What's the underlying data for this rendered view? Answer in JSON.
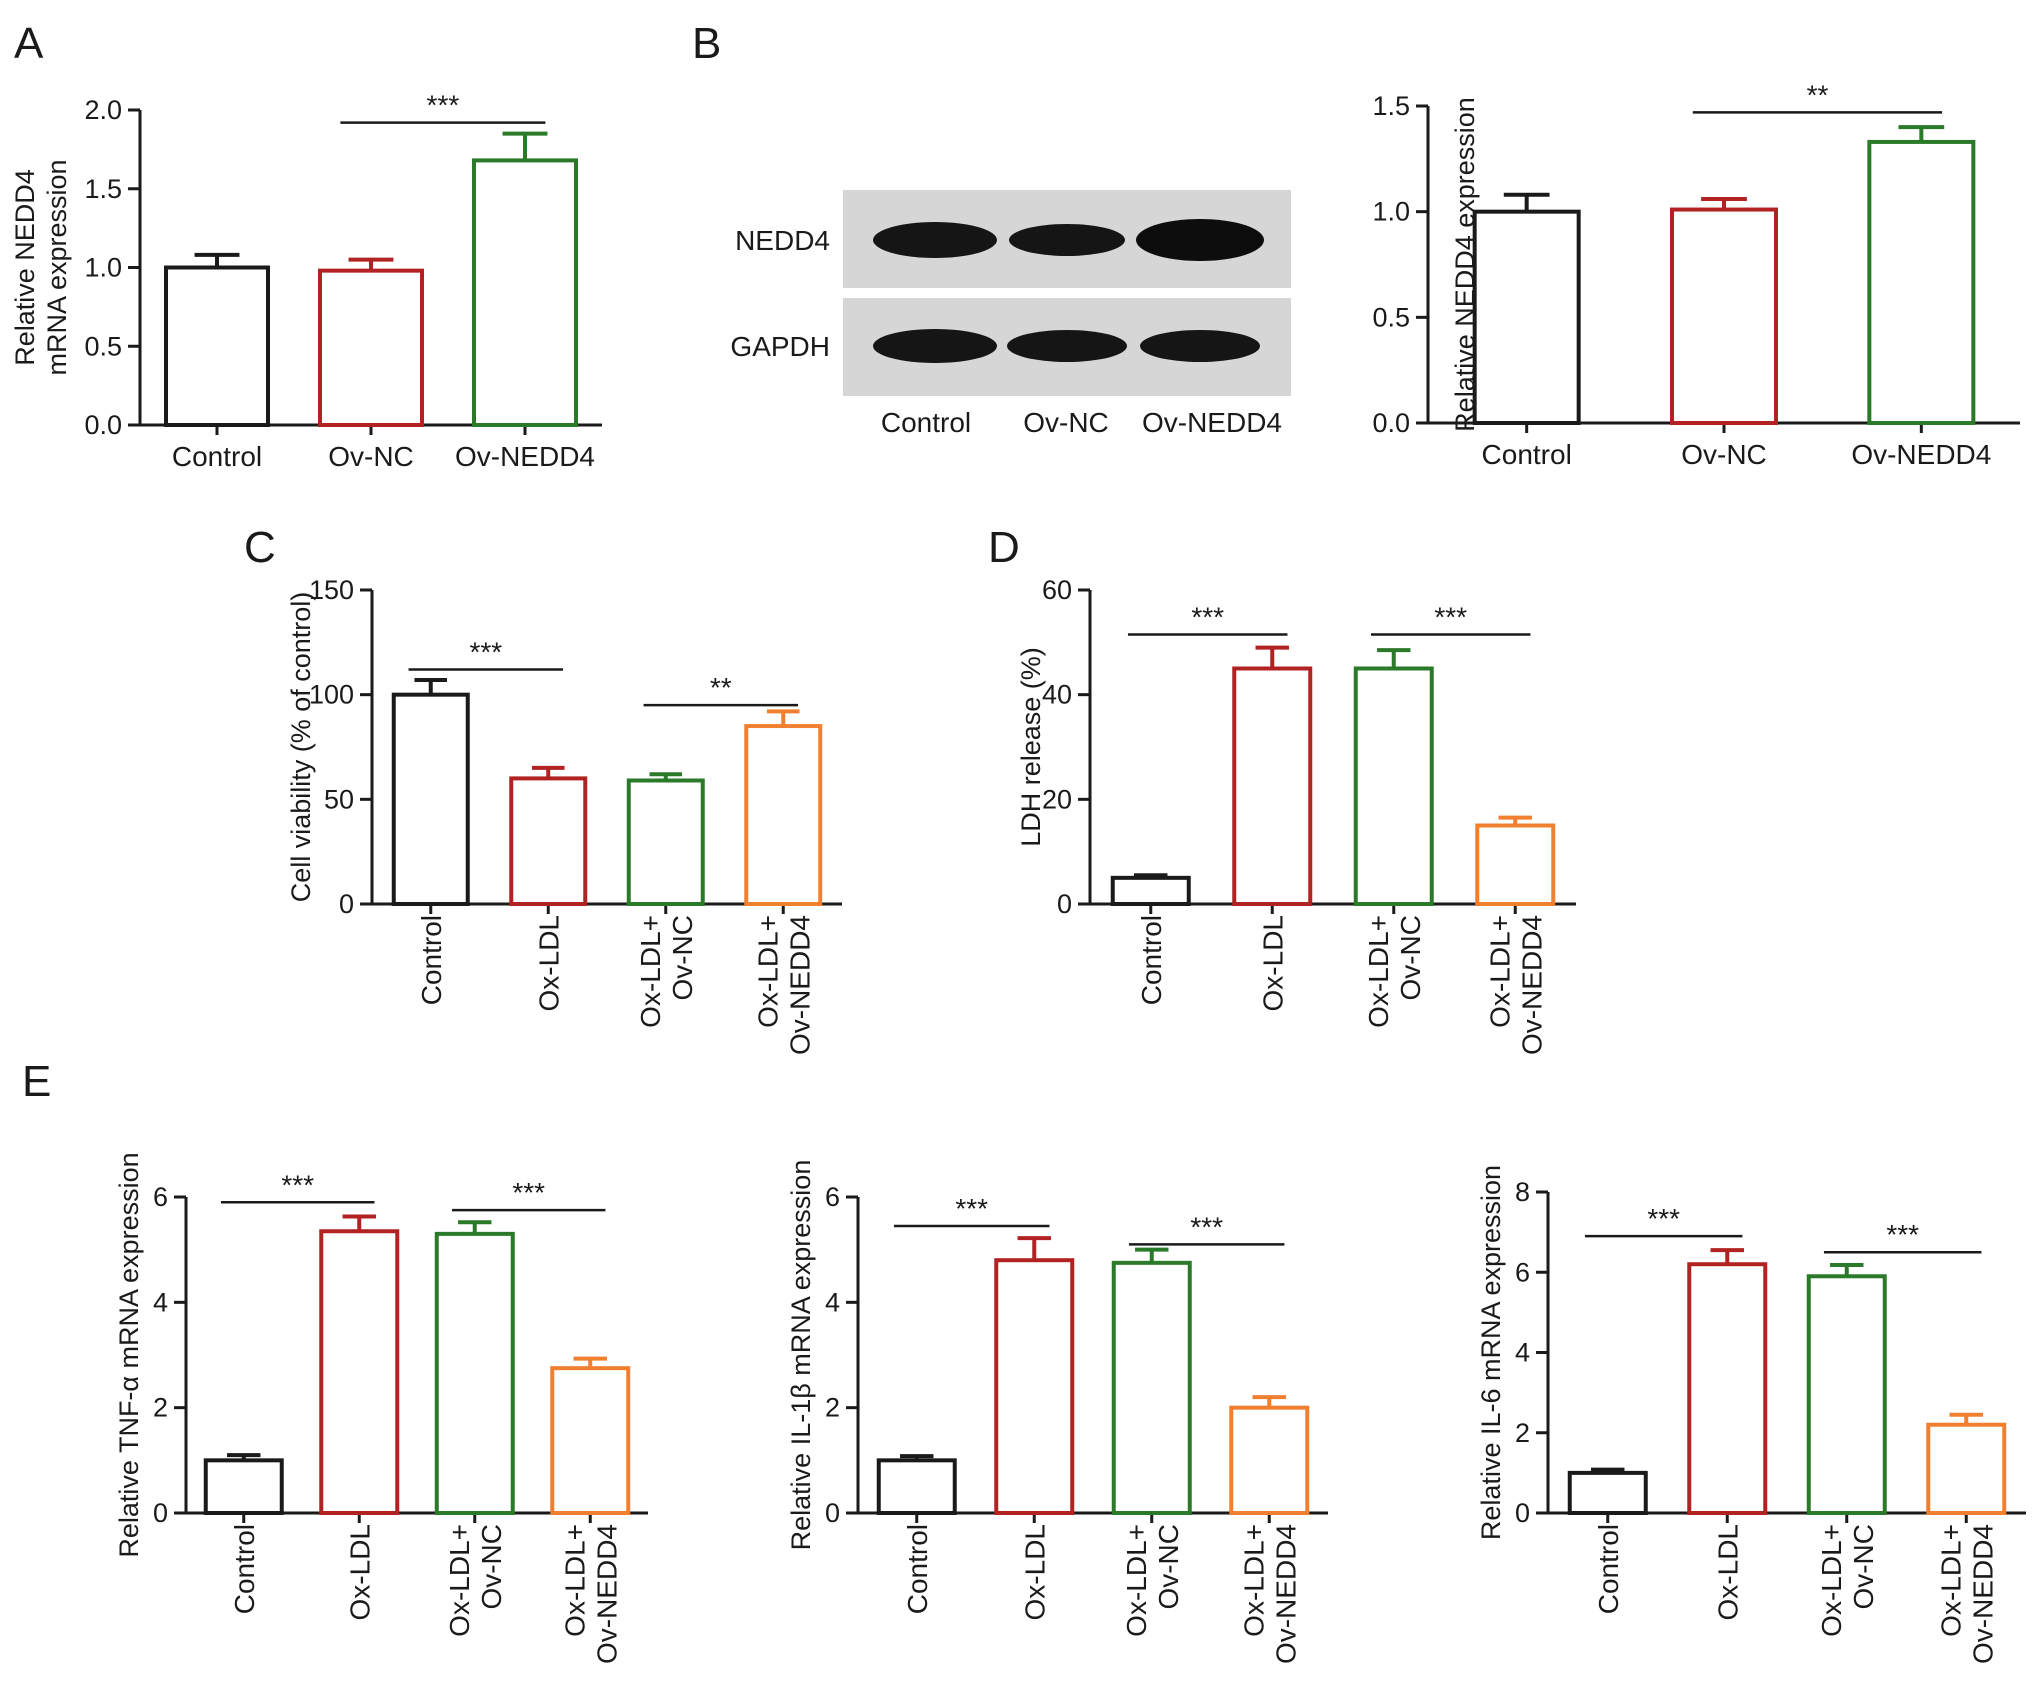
{
  "colors": {
    "control": "#1a1a1a",
    "ox_ldl": "#b22222",
    "ov_nc": "#b22222",
    "ox_ldl_ov_nc": "#2a7a2a",
    "ov_nedd4": "#2a7a2a",
    "ox_ldl_ov_nedd4": "#f08030"
  },
  "panel_letters": {
    "A": "A",
    "B": "B",
    "C": "C",
    "D": "D",
    "E": "E"
  },
  "blot": {
    "rows": [
      "NEDD4",
      "GAPDH"
    ],
    "lanes": [
      "Control",
      "Ov-NC",
      "Ov-NEDD4"
    ]
  },
  "chart_data": [
    {
      "id": "A",
      "type": "bar",
      "ylabel": [
        "Relative NEDD4",
        "mRNA expression"
      ],
      "categories": [
        [
          "Control"
        ],
        [
          "Ov-NC"
        ],
        [
          "Ov-NEDD4"
        ]
      ],
      "values": [
        1.0,
        0.98,
        1.68
      ],
      "errors": [
        0.08,
        0.07,
        0.17
      ],
      "ylim": [
        0,
        2.0
      ],
      "yticks": [
        "0.0",
        "0.5",
        "1.0",
        "1.5",
        "2.0"
      ],
      "tick_values": [
        0,
        0.5,
        1.0,
        1.5,
        2.0
      ],
      "rotate_labels": false,
      "bar_colors": [
        "control",
        "ov_nc",
        "ov_nedd4"
      ],
      "significance": [
        {
          "from": 1,
          "to": 2,
          "label": "***",
          "y": 1.92
        }
      ]
    },
    {
      "id": "B",
      "type": "bar",
      "ylabel": [
        "Relative NEDD4 expression"
      ],
      "categories": [
        [
          "Control"
        ],
        [
          "Ov-NC"
        ],
        [
          "Ov-NEDD4"
        ]
      ],
      "values": [
        1.0,
        1.01,
        1.33
      ],
      "errors": [
        0.08,
        0.05,
        0.07
      ],
      "ylim": [
        0,
        1.5
      ],
      "yticks": [
        "0.0",
        "0.5",
        "1.0",
        "1.5"
      ],
      "tick_values": [
        0,
        0.5,
        1.0,
        1.5
      ],
      "rotate_labels": false,
      "bar_colors": [
        "control",
        "ov_nc",
        "ov_nedd4"
      ],
      "significance": [
        {
          "from": 1,
          "to": 2,
          "label": "**",
          "y": 1.47
        }
      ]
    },
    {
      "id": "C",
      "type": "bar",
      "ylabel": [
        "Cell viability (% of control)"
      ],
      "categories": [
        [
          "Control"
        ],
        [
          "Ox-LDL"
        ],
        [
          "Ox-LDL+",
          "Ov-NC"
        ],
        [
          "Ox-LDL+",
          "Ov-NEDD4"
        ]
      ],
      "values": [
        100,
        60,
        59,
        85
      ],
      "errors": [
        7,
        5,
        3,
        7
      ],
      "ylim": [
        0,
        150
      ],
      "yticks": [
        "0",
        "50",
        "100",
        "150"
      ],
      "tick_values": [
        0,
        50,
        100,
        150
      ],
      "rotate_labels": true,
      "bar_colors": [
        "control",
        "ox_ldl",
        "ox_ldl_ov_nc",
        "ox_ldl_ov_nedd4"
      ],
      "significance": [
        {
          "from": 0,
          "to": 1,
          "label": "***",
          "y": 112
        },
        {
          "from": 2,
          "to": 3,
          "label": "**",
          "y": 95
        }
      ]
    },
    {
      "id": "D",
      "type": "bar",
      "ylabel": [
        "LDH release (%)"
      ],
      "categories": [
        [
          "Control"
        ],
        [
          "Ox-LDL"
        ],
        [
          "Ox-LDL+",
          "Ov-NC"
        ],
        [
          "Ox-LDL+",
          "Ov-NEDD4"
        ]
      ],
      "values": [
        5,
        45,
        45,
        15
      ],
      "errors": [
        0.5,
        4,
        3.5,
        1.5
      ],
      "ylim": [
        0,
        60
      ],
      "yticks": [
        "0",
        "20",
        "40",
        "60"
      ],
      "tick_values": [
        0,
        20,
        40,
        60
      ],
      "rotate_labels": true,
      "bar_colors": [
        "control",
        "ox_ldl",
        "ox_ldl_ov_nc",
        "ox_ldl_ov_nedd4"
      ],
      "significance": [
        {
          "from": 0,
          "to": 1,
          "label": "***",
          "y": 51.5
        },
        {
          "from": 2,
          "to": 3,
          "label": "***",
          "y": 51.5
        }
      ]
    },
    {
      "id": "E1",
      "type": "bar",
      "ylabel": [
        "Relative TNF-α mRNA expression"
      ],
      "categories": [
        [
          "Control"
        ],
        [
          "Ox-LDL"
        ],
        [
          "Ox-LDL+",
          "Ov-NC"
        ],
        [
          "Ox-LDL+",
          "Ov-NEDD4"
        ]
      ],
      "values": [
        1.0,
        5.35,
        5.3,
        2.75
      ],
      "errors": [
        0.1,
        0.28,
        0.22,
        0.18
      ],
      "ylim": [
        0,
        6
      ],
      "yticks": [
        "0",
        "2",
        "4",
        "6"
      ],
      "tick_values": [
        0,
        2,
        4,
        6
      ],
      "rotate_labels": true,
      "bar_colors": [
        "control",
        "ox_ldl",
        "ox_ldl_ov_nc",
        "ox_ldl_ov_nedd4"
      ],
      "significance": [
        {
          "from": 0,
          "to": 1,
          "label": "***",
          "y": 5.9
        },
        {
          "from": 2,
          "to": 3,
          "label": "***",
          "y": 5.75
        }
      ]
    },
    {
      "id": "E2",
      "type": "bar",
      "ylabel": [
        "Relative IL-1β mRNA expression"
      ],
      "categories": [
        [
          "Control"
        ],
        [
          "Ox-LDL"
        ],
        [
          "Ox-LDL+",
          "Ov-NC"
        ],
        [
          "Ox-LDL+",
          "Ov-NEDD4"
        ]
      ],
      "values": [
        1.0,
        4.8,
        4.75,
        2.0
      ],
      "errors": [
        0.08,
        0.42,
        0.25,
        0.2
      ],
      "ylim": [
        0,
        6
      ],
      "yticks": [
        "0",
        "2",
        "4",
        "6"
      ],
      "tick_values": [
        0,
        2,
        4,
        6
      ],
      "rotate_labels": true,
      "bar_colors": [
        "control",
        "ox_ldl",
        "ox_ldl_ov_nc",
        "ox_ldl_ov_nedd4"
      ],
      "significance": [
        {
          "from": 0,
          "to": 1,
          "label": "***",
          "y": 5.45
        },
        {
          "from": 2,
          "to": 3,
          "label": "***",
          "y": 5.1
        }
      ]
    },
    {
      "id": "E3",
      "type": "bar",
      "ylabel": [
        "Relative IL-6 mRNA expression"
      ],
      "categories": [
        [
          "Control"
        ],
        [
          "Ox-LDL"
        ],
        [
          "Ox-LDL+",
          "Ov-NC"
        ],
        [
          "Ox-LDL+",
          "Ov-NEDD4"
        ]
      ],
      "values": [
        1.0,
        6.2,
        5.9,
        2.2
      ],
      "errors": [
        0.08,
        0.35,
        0.28,
        0.25
      ],
      "ylim": [
        0,
        8
      ],
      "yticks": [
        "0",
        "2",
        "4",
        "6",
        "8"
      ],
      "tick_values": [
        0,
        2,
        4,
        6,
        8
      ],
      "rotate_labels": true,
      "bar_colors": [
        "control",
        "ox_ldl",
        "ox_ldl_ov_nc",
        "ox_ldl_ov_nedd4"
      ],
      "significance": [
        {
          "from": 0,
          "to": 1,
          "label": "***",
          "y": 6.9
        },
        {
          "from": 2,
          "to": 3,
          "label": "***",
          "y": 6.5
        }
      ]
    }
  ]
}
